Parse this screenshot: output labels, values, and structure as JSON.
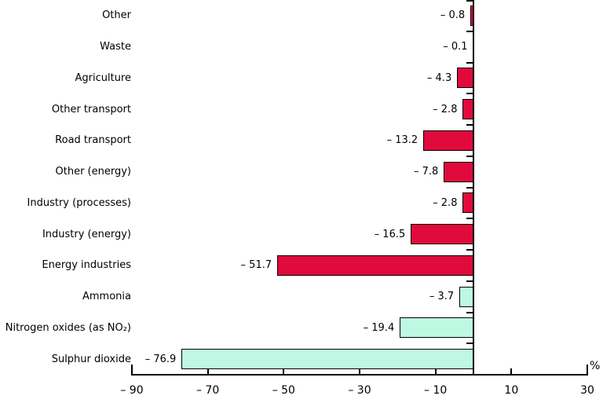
{
  "chart_data": {
    "type": "bar",
    "orientation": "horizontal",
    "title": "",
    "unit_label": "%",
    "categories": [
      "Other",
      "Waste",
      "Agriculture",
      "Other transport",
      "Road transport",
      "Other (energy)",
      "Industry (processes)",
      "Industry (energy)",
      "Energy industries",
      "Ammonia",
      "Nitrogen oxides (as NO₂)",
      "Sulphur dioxide"
    ],
    "values": [
      -0.8,
      -0.1,
      -4.3,
      -2.8,
      -13.2,
      -7.8,
      -2.8,
      -16.5,
      -51.7,
      -3.7,
      -19.4,
      -76.9
    ],
    "value_labels": [
      "– 0.8",
      "– 0.1",
      "– 4.3",
      "– 2.8",
      "– 13.2",
      "– 7.8",
      "– 2.8",
      "– 16.5",
      "– 51.7",
      "– 3.7",
      "– 19.4",
      "– 76.9"
    ],
    "groups": [
      "sector",
      "sector",
      "sector",
      "sector",
      "sector",
      "sector",
      "sector",
      "sector",
      "sector",
      "pollutant",
      "pollutant",
      "pollutant"
    ],
    "group_colors": {
      "sector": "#E00A3C",
      "pollutant": "#BEF8E3"
    },
    "bar_border_color": "#000000",
    "axis_color": "#000000",
    "text_color": "#000000",
    "xlim": [
      -90,
      30
    ],
    "x_ticks": [
      -90,
      -70,
      -50,
      -30,
      -10,
      10,
      30
    ],
    "x_tick_labels": [
      "– 90",
      "– 70",
      "– 50",
      "– 30",
      "– 10",
      "10",
      "30"
    ],
    "grid": false,
    "legend": false
  }
}
